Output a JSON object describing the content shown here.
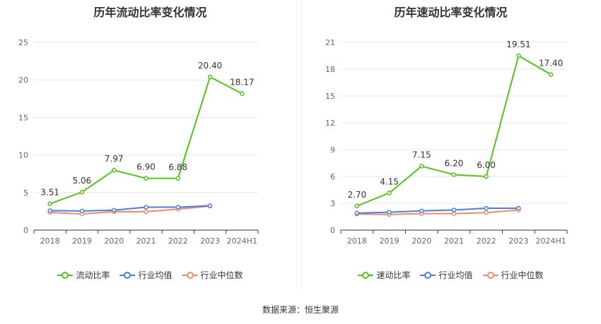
{
  "footer": {
    "source": "数据来源：恒生聚源"
  },
  "chart_data": [
    {
      "id": "current",
      "type": "line",
      "title": "历年流动比率变化情况",
      "categories": [
        "2018",
        "2019",
        "2020",
        "2021",
        "2022",
        "2023",
        "2024H1"
      ],
      "ylim": [
        0,
        25
      ],
      "yticks": [
        0,
        5,
        10,
        15,
        20,
        25
      ],
      "grid": true,
      "legend_position": "bottom",
      "series": [
        {
          "name": "流动比率",
          "color": "#52c41a",
          "labels": true,
          "values": [
            3.51,
            5.06,
            7.97,
            6.9,
            6.88,
            20.4,
            18.17
          ],
          "value_labels": [
            "3.51",
            "5.06",
            "7.97",
            "6.90",
            "6.88",
            "20.40",
            "18.17"
          ]
        },
        {
          "name": "行业均值",
          "color": "#4a7ee0",
          "labels": false,
          "values": [
            2.6,
            2.55,
            2.65,
            3.05,
            3.05,
            3.25,
            null
          ]
        },
        {
          "name": "行业中位数",
          "color": "#f08a6a",
          "labels": false,
          "values": [
            2.35,
            2.15,
            2.45,
            2.45,
            2.8,
            3.2,
            null
          ]
        }
      ]
    },
    {
      "id": "quick",
      "type": "line",
      "title": "历年速动比率变化情况",
      "categories": [
        "2018",
        "2019",
        "2020",
        "2021",
        "2022",
        "2023",
        "2024H1"
      ],
      "ylim": [
        0,
        21
      ],
      "yticks": [
        0,
        3,
        6,
        9,
        12,
        15,
        18,
        21
      ],
      "grid": true,
      "legend_position": "bottom",
      "series": [
        {
          "name": "速动比率",
          "color": "#52c41a",
          "labels": true,
          "values": [
            2.7,
            4.15,
            7.15,
            6.2,
            6.0,
            19.51,
            17.4
          ],
          "value_labels": [
            "2.70",
            "4.15",
            "7.15",
            "6.20",
            "6.00",
            "19.51",
            "17.40"
          ]
        },
        {
          "name": "行业均值",
          "color": "#4a7ee0",
          "labels": false,
          "values": [
            1.9,
            2.0,
            2.15,
            2.25,
            2.45,
            2.45,
            null
          ]
        },
        {
          "name": "行业中位数",
          "color": "#f08a6a",
          "labels": false,
          "values": [
            1.8,
            1.75,
            1.85,
            1.85,
            1.95,
            2.25,
            null
          ]
        }
      ]
    }
  ]
}
